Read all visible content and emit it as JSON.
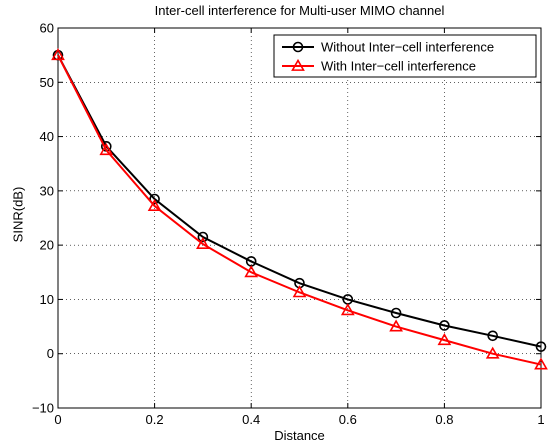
{
  "chart_data": {
    "type": "line",
    "title": "Inter-cell interference for Multi-user MIMO channel",
    "xlabel": "Distance",
    "ylabel": "SINR(dB)",
    "xlim": [
      0,
      1
    ],
    "ylim": [
      -10,
      60
    ],
    "xticks": [
      0,
      0.2,
      0.4,
      0.6,
      0.8,
      1
    ],
    "yticks": [
      -10,
      0,
      10,
      20,
      30,
      40,
      50,
      60
    ],
    "xtick_labels": [
      "0",
      "0.2",
      "0.4",
      "0.6",
      "0.8",
      "1"
    ],
    "ytick_labels": [
      "−10",
      "0",
      "10",
      "20",
      "30",
      "40",
      "50",
      "60"
    ],
    "grid": "dotted",
    "legend_position": "top-right",
    "x": [
      0,
      0.1,
      0.2,
      0.3,
      0.4,
      0.5,
      0.6,
      0.7,
      0.8,
      0.9,
      1.0
    ],
    "series": [
      {
        "name": "Without Inter−cell interference",
        "color": "#000000",
        "marker": "circle",
        "values": [
          55,
          38.2,
          28.5,
          21.5,
          17.0,
          13.0,
          10.0,
          7.5,
          5.2,
          3.3,
          1.3
        ]
      },
      {
        "name": "With Inter−cell interference",
        "color": "#ff0000",
        "marker": "triangle",
        "values": [
          55,
          37.5,
          27.2,
          20.2,
          15.0,
          11.3,
          8.0,
          5.0,
          2.5,
          0.0,
          -2.0
        ]
      }
    ]
  }
}
